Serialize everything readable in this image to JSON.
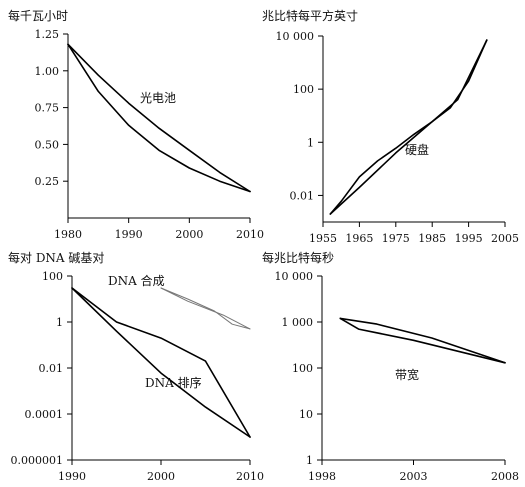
{
  "chart_data": [
    {
      "type": "line",
      "unit_label": "每千瓦小时",
      "annotation": "光电池",
      "xlim": [
        1980,
        2010
      ],
      "ylim": [
        0,
        1.25
      ],
      "xticks": [
        {
          "v": 1980,
          "label": "1980"
        },
        {
          "v": 1990,
          "label": "1990"
        },
        {
          "v": 2000,
          "label": "2000"
        },
        {
          "v": 2010,
          "label": "2010"
        }
      ],
      "yticks": [
        {
          "v": 0.25,
          "label": "0.25"
        },
        {
          "v": 0.5,
          "label": "0.50"
        },
        {
          "v": 0.75,
          "label": "0.75"
        },
        {
          "v": 1.0,
          "label": "1.00"
        },
        {
          "v": 1.25,
          "label": "1.25"
        }
      ],
      "series": [
        {
          "values": [
            [
              1980,
              1.18
            ],
            [
              1985,
              0.97
            ],
            [
              1990,
              0.78
            ],
            [
              1995,
              0.61
            ],
            [
              2000,
              0.46
            ],
            [
              2005,
              0.31
            ],
            [
              2010,
              0.18
            ]
          ]
        },
        {
          "values": [
            [
              1980,
              1.18
            ],
            [
              1985,
              0.86
            ],
            [
              1990,
              0.63
            ],
            [
              1995,
              0.46
            ],
            [
              2000,
              0.34
            ],
            [
              2005,
              0.25
            ],
            [
              2010,
              0.18
            ]
          ]
        }
      ]
    },
    {
      "type": "line",
      "unit_label": "兆比特每平方英寸",
      "annotation": "硬盘",
      "xlim": [
        1955,
        2005
      ],
      "ylim": [
        0.001,
        10000
      ],
      "yscale": "log",
      "xticks": [
        {
          "v": 1955,
          "label": "1955"
        },
        {
          "v": 1965,
          "label": "1965"
        },
        {
          "v": 1975,
          "label": "1975"
        },
        {
          "v": 1985,
          "label": "1985"
        },
        {
          "v": 1995,
          "label": "1995"
        },
        {
          "v": 2005,
          "label": "2005"
        }
      ],
      "yticks": [
        {
          "v": 0.01,
          "label": "0.01"
        },
        {
          "v": 1,
          "label": "1"
        },
        {
          "v": 100,
          "label": "100"
        },
        {
          "v": 10000,
          "label": "10 000"
        }
      ],
      "series": [
        {
          "values": [
            [
              1957,
              0.002
            ],
            [
              1960,
              0.006
            ],
            [
              1965,
              0.05
            ],
            [
              1970,
              0.2
            ],
            [
              1975,
              0.6
            ],
            [
              1980,
              2
            ],
            [
              1985,
              6
            ],
            [
              1990,
              20
            ],
            [
              1995,
              200
            ],
            [
              2000,
              7000
            ]
          ]
        },
        {
          "values": [
            [
              1957,
              0.002
            ],
            [
              1965,
              0.02
            ],
            [
              1975,
              0.4
            ],
            [
              1985,
              6
            ],
            [
              1992,
              40
            ],
            [
              2000,
              7000
            ]
          ]
        }
      ]
    },
    {
      "type": "line",
      "unit_label": "每对 DNA 碱基对",
      "annotations": [
        "DNA 合成",
        "DNA 排序"
      ],
      "xlim": [
        1990,
        2010
      ],
      "ylim": [
        1e-06,
        100
      ],
      "yscale": "log",
      "xticks": [
        {
          "v": 1990,
          "label": "1990"
        },
        {
          "v": 2000,
          "label": "2000"
        },
        {
          "v": 2010,
          "label": "2010"
        }
      ],
      "yticks": [
        {
          "v": 1e-06,
          "label": "0.000001"
        },
        {
          "v": 0.0001,
          "label": "0.0001"
        },
        {
          "v": 0.01,
          "label": "0.01"
        },
        {
          "v": 1,
          "label": "1"
        },
        {
          "v": 100,
          "label": "100"
        }
      ],
      "series": [
        {
          "values": [
            [
              1990,
              30
            ],
            [
              1995,
              1
            ],
            [
              2000,
              0.2
            ],
            [
              2005,
              0.02
            ],
            [
              2010,
              1e-05
            ]
          ]
        },
        {
          "values": [
            [
              1990,
              30
            ],
            [
              1995,
              0.4
            ],
            [
              2000,
              0.006
            ],
            [
              2005,
              0.0002
            ],
            [
              2010,
              1e-05
            ]
          ]
        },
        {
          "style": "thin",
          "values": [
            [
              2000,
              30
            ],
            [
              2003,
              10
            ],
            [
              2006,
              3
            ],
            [
              2008,
              0.8
            ],
            [
              2010,
              0.5
            ]
          ]
        },
        {
          "style": "thin",
          "values": [
            [
              2000,
              30
            ],
            [
              2003,
              8
            ],
            [
              2007,
              2
            ],
            [
              2010,
              0.5
            ]
          ]
        }
      ]
    },
    {
      "type": "line",
      "unit_label": "每兆比特每秒",
      "annotation": "带宽",
      "xlim": [
        1998,
        2008
      ],
      "ylim": [
        1,
        10000
      ],
      "yscale": "log",
      "xticks": [
        {
          "v": 1998,
          "label": "1998"
        },
        {
          "v": 2003,
          "label": "2003"
        },
        {
          "v": 2008,
          "label": "2008"
        }
      ],
      "yticks": [
        {
          "v": 1,
          "label": "1"
        },
        {
          "v": 10,
          "label": "10"
        },
        {
          "v": 100,
          "label": "100"
        },
        {
          "v": 1000,
          "label": "1 000"
        },
        {
          "v": 10000,
          "label": "10 000"
        }
      ],
      "series": [
        {
          "values": [
            [
              1999,
              1200
            ],
            [
              2000,
              700
            ],
            [
              2003,
              400
            ],
            [
              2008,
              130
            ]
          ]
        },
        {
          "values": [
            [
              1999,
              1200
            ],
            [
              2001,
              900
            ],
            [
              2004,
              450
            ],
            [
              2008,
              130
            ]
          ]
        }
      ]
    }
  ]
}
